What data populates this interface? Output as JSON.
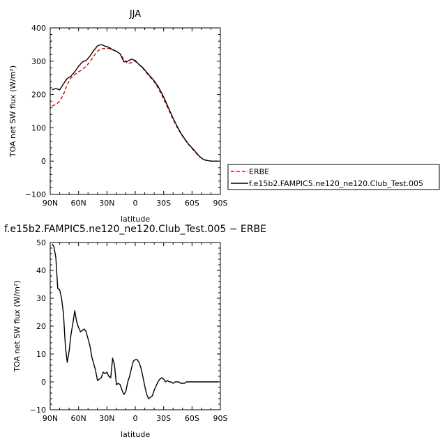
{
  "chart_data": [
    {
      "type": "line",
      "title": "JJA",
      "xlabel": "latitude",
      "ylabel": "TOA net SW flux (W/m²)",
      "xlim": [
        90,
        -90
      ],
      "ylim": [
        -100,
        400
      ],
      "xticks": [
        90,
        60,
        30,
        0,
        -30,
        -60,
        -90
      ],
      "xtick_labels": [
        "90N",
        "60N",
        "30N",
        "0",
        "30S",
        "60S",
        "90S"
      ],
      "yticks": [
        -100,
        0,
        100,
        200,
        300,
        400
      ],
      "ytick_labels": [
        "−100",
        "0",
        "100",
        "200",
        "300",
        "400"
      ],
      "legend_position": "right",
      "series": [
        {
          "name": "ERBE",
          "color": "#dd0000",
          "dash": "dashed",
          "x": [
            88,
            84,
            80,
            76,
            72,
            68,
            64,
            60,
            56,
            52,
            48,
            44,
            40,
            36,
            32,
            28,
            24,
            20,
            16,
            12,
            8,
            4,
            0,
            -4,
            -8,
            -12,
            -16,
            -20,
            -24,
            -28,
            -32,
            -36,
            -40,
            -44,
            -48,
            -52,
            -56,
            -60,
            -64,
            -68,
            -72,
            -76,
            -80,
            -84,
            -88
          ],
          "y": [
            165,
            170,
            180,
            200,
            230,
            250,
            260,
            268,
            275,
            285,
            298,
            315,
            330,
            337,
            338,
            338,
            335,
            330,
            322,
            305,
            292,
            296,
            300,
            290,
            279,
            264,
            251,
            238,
            220,
            198,
            174,
            150,
            125,
            103,
            83,
            66,
            51,
            38,
            25,
            13,
            5,
            1,
            0,
            0,
            0
          ]
        },
        {
          "name": "f.e15b2.FAMPIC5.ne120_ne120.Club_Test.005",
          "color": "#000000",
          "dash": "solid",
          "x": [
            88,
            84,
            80,
            76,
            72,
            68,
            64,
            60,
            56,
            52,
            48,
            44,
            40,
            36,
            32,
            28,
            24,
            20,
            16,
            12,
            8,
            4,
            0,
            -4,
            -8,
            -12,
            -16,
            -20,
            -24,
            -28,
            -32,
            -36,
            -40,
            -44,
            -48,
            -52,
            -56,
            -60,
            -64,
            -68,
            -72,
            -76,
            -80,
            -84,
            -88
          ],
          "y": [
            214,
            218,
            214,
            232,
            248,
            255,
            268,
            285,
            298,
            302,
            315,
            332,
            346,
            350,
            345,
            342,
            334,
            330,
            322,
            298,
            300,
            306,
            302,
            290,
            281,
            267,
            254,
            241,
            225,
            204,
            180,
            154,
            129,
            106,
            85,
            68,
            52,
            40,
            27,
            14,
            5,
            2,
            0,
            0,
            0
          ]
        }
      ]
    },
    {
      "type": "line",
      "title": "f.e15b2.FAMPIC5.ne120_ne120.Club_Test.005 − ERBE",
      "xlabel": "latitude",
      "ylabel": "TOA net SW flux (W/m²)",
      "xlim": [
        90,
        -90
      ],
      "ylim": [
        -10,
        50
      ],
      "xticks": [
        90,
        60,
        30,
        0,
        -30,
        -60,
        -90
      ],
      "xtick_labels": [
        "90N",
        "60N",
        "30N",
        "0",
        "30S",
        "60S",
        "90S"
      ],
      "yticks": [
        -10,
        0,
        10,
        20,
        30,
        40,
        50
      ],
      "ytick_labels": [
        "−10",
        "0",
        "10",
        "20",
        "30",
        "40",
        "50"
      ],
      "series": [
        {
          "color": "#000000",
          "dash": "solid",
          "x": [
            88,
            86,
            84,
            82,
            80,
            78,
            76,
            74,
            72,
            70,
            68,
            66,
            64,
            62,
            60,
            58,
            56,
            54,
            52,
            50,
            48,
            46,
            44,
            42,
            40,
            38,
            36,
            34,
            32,
            30,
            28,
            26,
            24,
            22,
            20,
            18,
            16,
            14,
            12,
            10,
            8,
            6,
            4,
            2,
            0,
            -2,
            -4,
            -6,
            -8,
            -10,
            -12,
            -14,
            -16,
            -18,
            -20,
            -22,
            -24,
            -26,
            -28,
            -30,
            -32,
            -34,
            -36,
            -38,
            -40,
            -42,
            -44,
            -46,
            -48,
            -50,
            -52,
            -54,
            -56,
            -58,
            -60,
            -62,
            -64,
            -66,
            -68,
            -70,
            -72,
            -74,
            -76,
            -78,
            -80,
            -82,
            -84,
            -86,
            -88
          ],
          "y": [
            49.5,
            48.5,
            44.5,
            33.5,
            33,
            30,
            24.5,
            13,
            7,
            11,
            17,
            21,
            25.5,
            21.5,
            19.5,
            18,
            18.5,
            19,
            18,
            15.5,
            13,
            9,
            6.5,
            4,
            0.5,
            1,
            1.5,
            3.5,
            3,
            3.5,
            2,
            1.5,
            8.5,
            6,
            -1,
            -0.5,
            -1,
            -3,
            -4.5,
            -3.5,
            0,
            2,
            5,
            7.5,
            8,
            8,
            7,
            5,
            2,
            -1.5,
            -4.5,
            -6,
            -5.5,
            -5,
            -3,
            -1.5,
            0,
            1,
            1.5,
            1,
            0,
            0.5,
            0,
            0,
            -0.5,
            0,
            0,
            0,
            -0.5,
            -0.5,
            -0.5,
            0,
            0,
            0,
            0,
            0,
            0,
            0,
            0,
            0,
            0,
            0,
            0,
            0,
            0,
            0,
            0,
            0,
            0
          ]
        }
      ]
    }
  ]
}
